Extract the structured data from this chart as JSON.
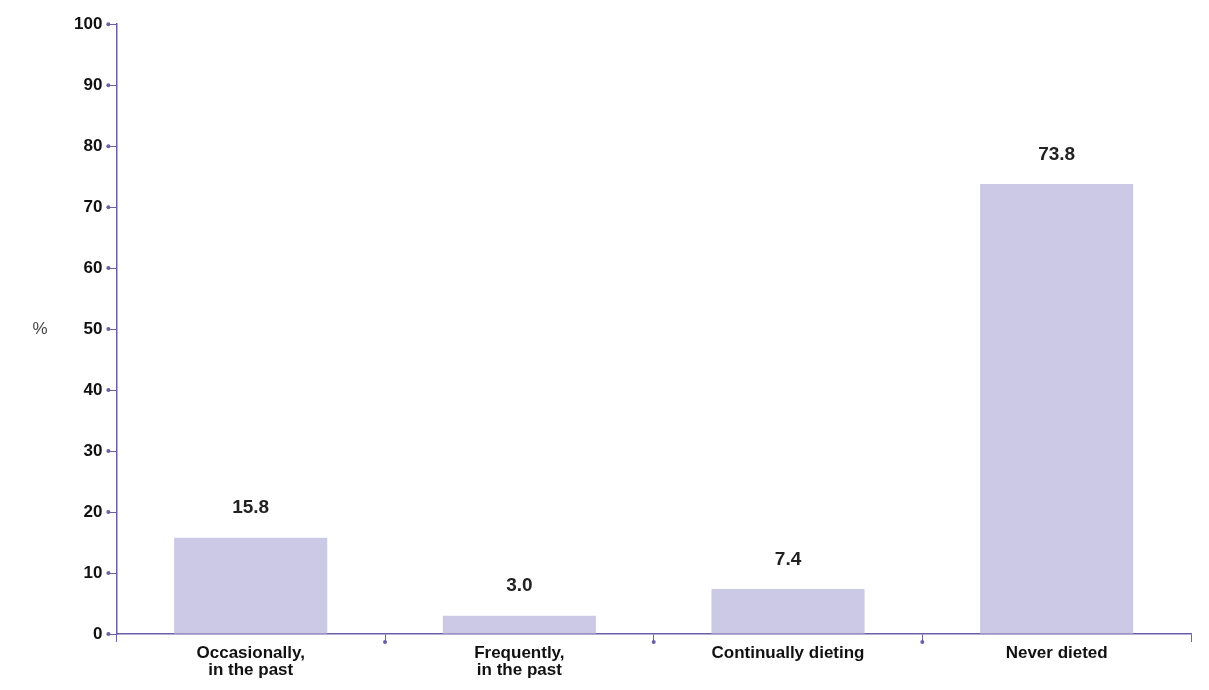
{
  "chart_data": {
    "type": "bar",
    "ylabel": "%",
    "categories": [
      "Occasionally, in the past",
      "Frequently, in the past",
      "Continually dieting",
      "Never dieted"
    ],
    "values": [
      15.8,
      3.0,
      7.4,
      73.8
    ],
    "color": "#ccc9e6",
    "ylim": [
      0,
      100
    ],
    "yticks": [
      0,
      10,
      20,
      30,
      40,
      50,
      60,
      70,
      80,
      90,
      100
    ],
    "value_labels": [
      "15.8",
      "3.0",
      "7.4",
      "73.8"
    ],
    "grid": false,
    "legend": false
  }
}
